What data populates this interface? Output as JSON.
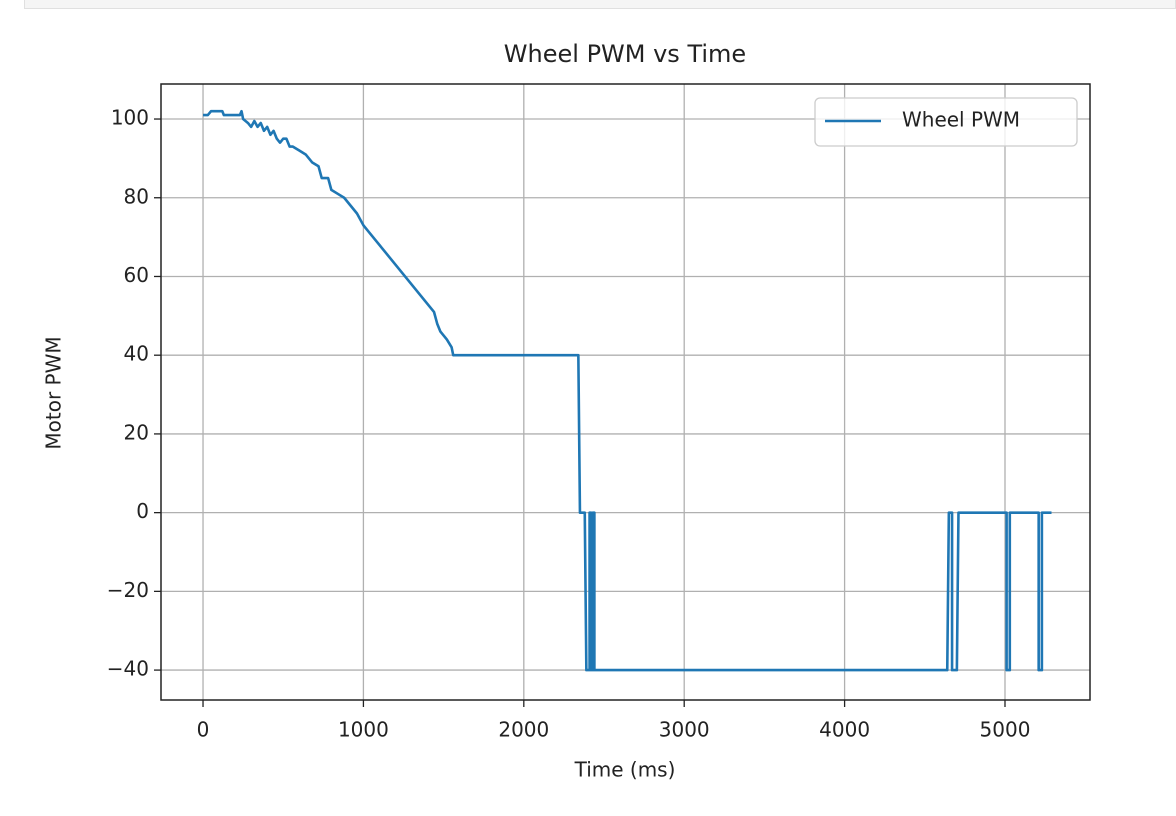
{
  "chart_data": {
    "type": "line",
    "title": "Wheel PWM vs Time",
    "x_label": "Time (ms)",
    "y_label": "Motor PWM",
    "xlim": [
      -262,
      5530
    ],
    "ylim": [
      -47.6,
      108.9
    ],
    "xticks": [
      0,
      1000,
      2000,
      3000,
      4000,
      5000
    ],
    "yticks": [
      {
        "value": -40,
        "label": "−40"
      },
      {
        "value": -20,
        "label": "−20"
      },
      0,
      20,
      40,
      60,
      80,
      100
    ],
    "grid": true,
    "legend": "upper right",
    "x": [
      0,
      30,
      50,
      120,
      130,
      230,
      240,
      250,
      280,
      300,
      320,
      340,
      360,
      380,
      400,
      420,
      440,
      460,
      480,
      500,
      520,
      540,
      560,
      600,
      640,
      680,
      720,
      740,
      780,
      800,
      840,
      880,
      920,
      960,
      1000,
      1040,
      1080,
      1120,
      1160,
      1200,
      1240,
      1280,
      1320,
      1360,
      1400,
      1440,
      1460,
      1480,
      1520,
      1550,
      1560,
      2340,
      2350,
      2380,
      2390,
      2410,
      2410,
      2420,
      2420,
      2430,
      2430,
      2440,
      2440,
      4640,
      4650,
      4670,
      4670,
      4700,
      4710,
      5010,
      5010,
      5030,
      5030,
      5210,
      5210,
      5230,
      5230,
      5290
    ],
    "series": [
      {
        "name": "Wheel PWM",
        "color": "#1f77b4",
        "values": [
          101,
          101,
          102,
          102,
          101,
          101,
          102,
          100,
          99,
          98,
          99.5,
          98,
          99,
          97,
          98,
          96,
          97,
          95,
          94,
          95,
          95,
          93,
          93,
          92,
          91,
          89,
          88,
          85,
          85,
          82,
          81,
          80,
          78,
          76,
          73,
          71,
          69,
          67,
          65,
          63,
          61,
          59,
          57,
          55,
          53,
          51,
          48,
          46,
          44,
          42,
          40,
          40,
          0,
          0,
          -40,
          -40,
          0,
          0,
          -40,
          -40,
          0,
          0,
          -40,
          -40,
          0,
          0,
          -40,
          -40,
          0,
          0,
          -40,
          -40,
          0,
          0,
          -40,
          -40,
          0,
          0
        ]
      }
    ]
  }
}
